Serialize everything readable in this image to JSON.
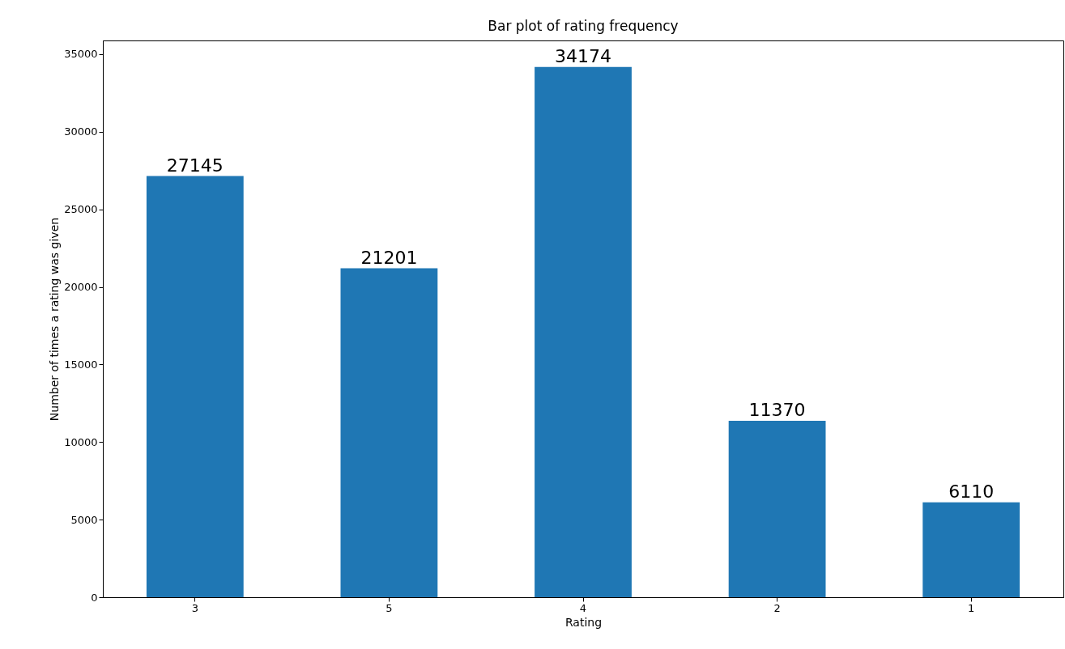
{
  "chart_data": {
    "type": "bar",
    "title": "Bar plot of rating frequency",
    "xlabel": "Rating",
    "ylabel": "Number of times a rating was given",
    "categories": [
      "3",
      "5",
      "4",
      "2",
      "1"
    ],
    "values": [
      27145,
      21201,
      34174,
      11370,
      6110
    ],
    "color": "#1f77b4",
    "ylim": [
      0,
      35883
    ],
    "yticks": [
      0,
      5000,
      10000,
      15000,
      20000,
      25000,
      30000,
      35000
    ],
    "grid": false,
    "data_labels": true
  }
}
